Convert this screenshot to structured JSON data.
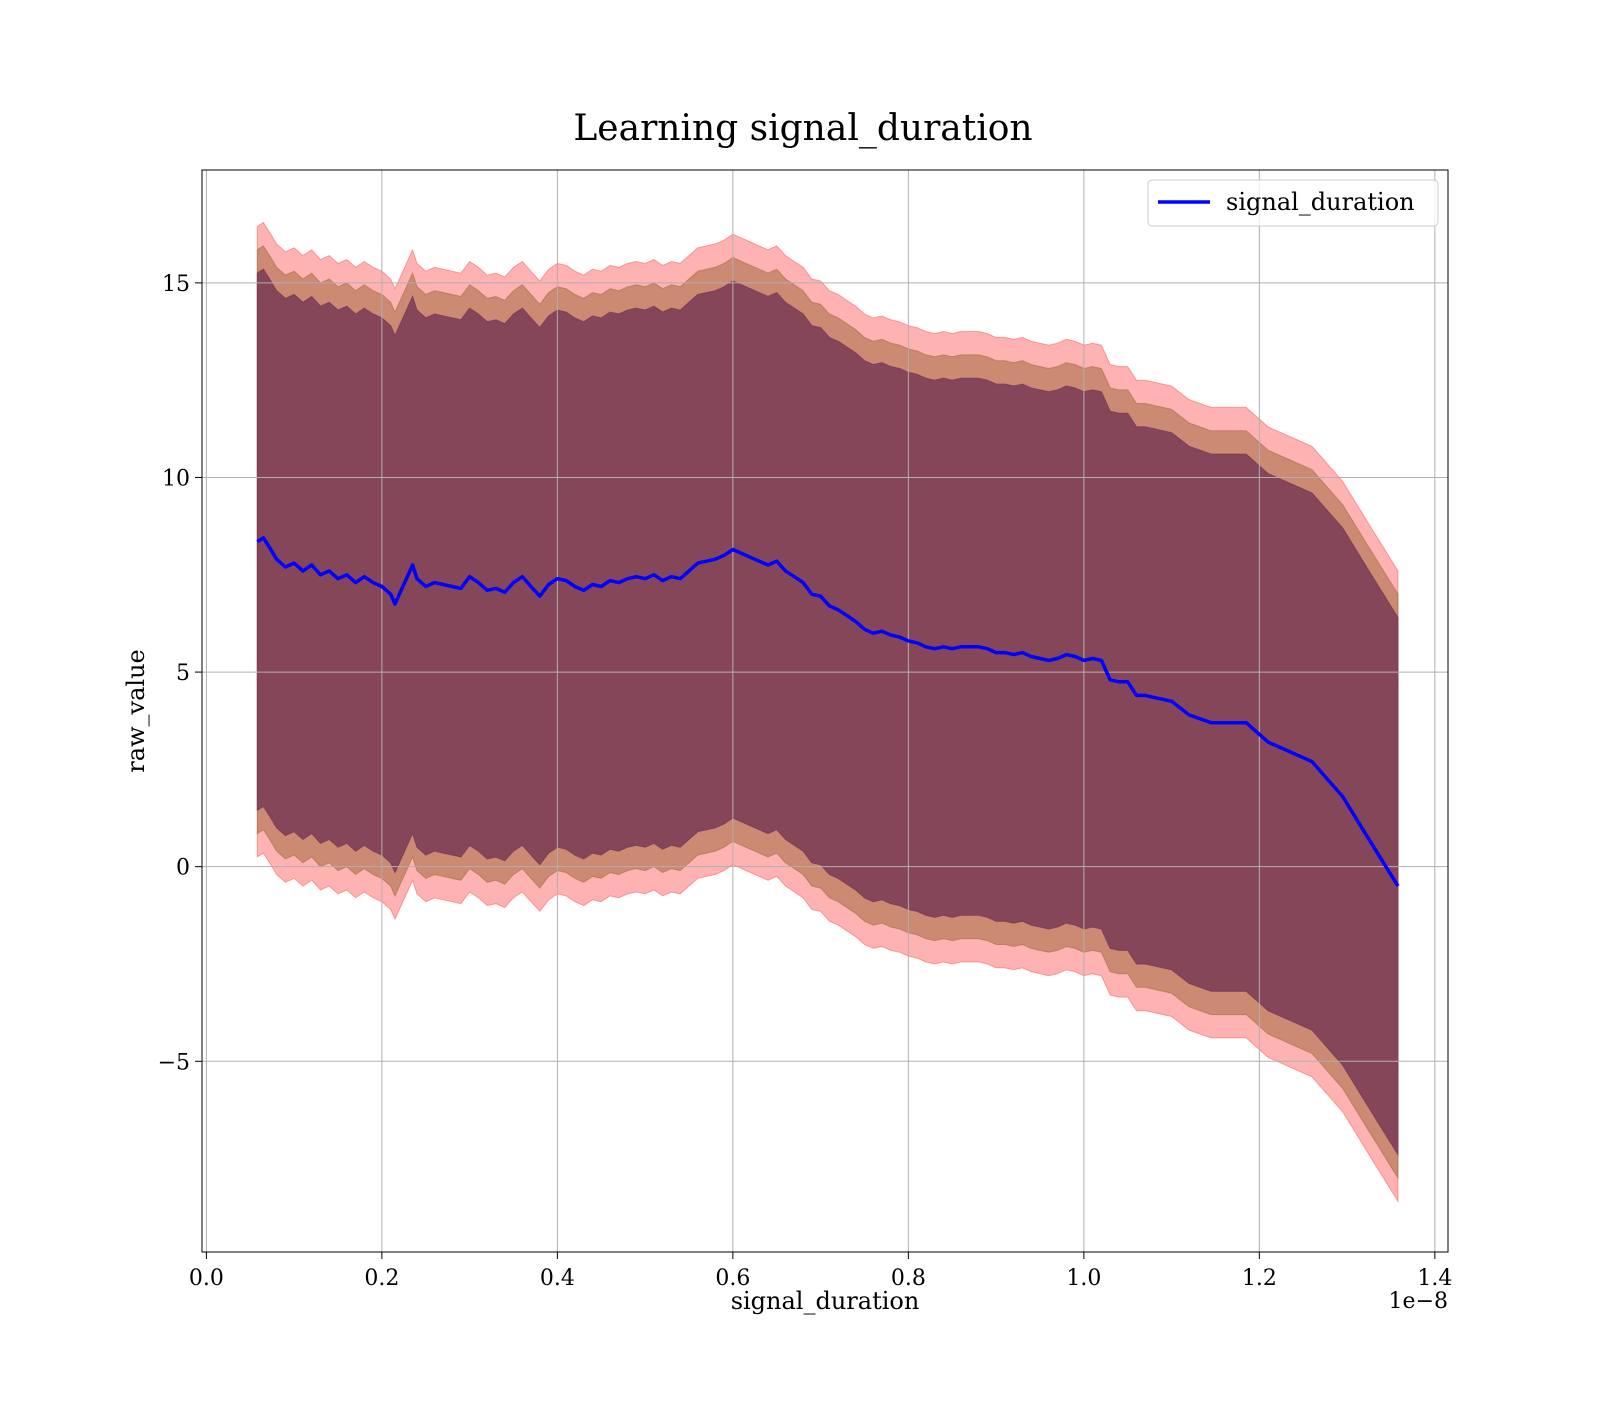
{
  "chart_data": {
    "type": "line",
    "title": "Learning signal_duration",
    "xlabel": "signal_duration",
    "ylabel": "raw_value",
    "x_offset_label": "1e−8",
    "xlim": [
      -0.005,
      1.415
    ],
    "ylim": [
      -9.9,
      17.9
    ],
    "x_ticks": [
      0.0,
      0.2,
      0.4,
      0.6,
      0.8,
      1.0,
      1.2,
      1.4
    ],
    "x_tick_labels": [
      "0.0",
      "0.2",
      "0.4",
      "0.6",
      "0.8",
      "1.0",
      "1.2",
      "1.4"
    ],
    "y_ticks": [
      -5,
      0,
      5,
      10,
      15
    ],
    "y_tick_labels": [
      "−5",
      "0",
      "5",
      "10",
      "15"
    ],
    "grid": true,
    "legend_position": "top-right",
    "colors": {
      "line": "#0000ff",
      "outer_band": "#ff0000",
      "middle_band": "#a06a3c",
      "inner_band": "#7a3a55"
    },
    "series": [
      {
        "name": "signal_duration",
        "x": [
          0.058,
          0.065,
          0.072,
          0.08,
          0.09,
          0.1,
          0.11,
          0.12,
          0.13,
          0.14,
          0.15,
          0.16,
          0.17,
          0.18,
          0.19,
          0.2,
          0.21,
          0.215,
          0.22,
          0.23,
          0.235,
          0.24,
          0.25,
          0.26,
          0.27,
          0.28,
          0.29,
          0.3,
          0.31,
          0.32,
          0.33,
          0.34,
          0.35,
          0.36,
          0.37,
          0.38,
          0.39,
          0.4,
          0.41,
          0.42,
          0.43,
          0.44,
          0.45,
          0.46,
          0.47,
          0.48,
          0.49,
          0.5,
          0.51,
          0.52,
          0.53,
          0.54,
          0.55,
          0.56,
          0.57,
          0.58,
          0.59,
          0.6,
          0.61,
          0.62,
          0.63,
          0.64,
          0.65,
          0.66,
          0.67,
          0.68,
          0.69,
          0.7,
          0.71,
          0.72,
          0.73,
          0.74,
          0.75,
          0.76,
          0.77,
          0.78,
          0.79,
          0.8,
          0.81,
          0.82,
          0.83,
          0.84,
          0.85,
          0.86,
          0.87,
          0.88,
          0.89,
          0.9,
          0.91,
          0.92,
          0.93,
          0.94,
          0.95,
          0.96,
          0.97,
          0.98,
          0.99,
          1.0,
          1.01,
          1.02,
          1.03,
          1.04,
          1.05,
          1.06,
          1.07,
          1.08,
          1.09,
          1.1,
          1.12,
          1.145,
          1.185,
          1.21,
          1.26,
          1.295,
          1.325,
          1.358
        ],
        "values": [
          8.35,
          8.45,
          8.2,
          7.9,
          7.7,
          7.8,
          7.6,
          7.75,
          7.5,
          7.6,
          7.4,
          7.5,
          7.3,
          7.45,
          7.3,
          7.2,
          7.0,
          6.75,
          7.0,
          7.5,
          7.75,
          7.4,
          7.2,
          7.3,
          7.25,
          7.2,
          7.15,
          7.45,
          7.3,
          7.1,
          7.15,
          7.05,
          7.3,
          7.45,
          7.2,
          6.95,
          7.25,
          7.4,
          7.35,
          7.2,
          7.1,
          7.25,
          7.2,
          7.35,
          7.3,
          7.4,
          7.45,
          7.4,
          7.5,
          7.35,
          7.45,
          7.4,
          7.6,
          7.8,
          7.85,
          7.9,
          8.0,
          8.15,
          8.05,
          7.95,
          7.85,
          7.75,
          7.85,
          7.6,
          7.45,
          7.3,
          7.0,
          6.95,
          6.7,
          6.6,
          6.45,
          6.3,
          6.1,
          6.0,
          6.05,
          5.95,
          5.9,
          5.8,
          5.75,
          5.65,
          5.6,
          5.65,
          5.6,
          5.65,
          5.65,
          5.65,
          5.6,
          5.5,
          5.5,
          5.45,
          5.5,
          5.4,
          5.35,
          5.3,
          5.35,
          5.45,
          5.4,
          5.3,
          5.35,
          5.3,
          4.8,
          4.75,
          4.75,
          4.4,
          4.4,
          4.35,
          4.3,
          4.25,
          3.9,
          3.7,
          3.7,
          3.2,
          2.7,
          1.8,
          0.7,
          -0.5
        ]
      }
    ],
    "bands": [
      {
        "x": [
          0.058,
          0.065,
          0.072,
          0.08,
          0.09,
          0.1,
          0.11,
          0.12,
          0.13,
          0.14,
          0.15,
          0.16,
          0.17,
          0.18,
          0.19,
          0.2,
          0.21,
          0.215,
          0.22,
          0.23,
          0.235,
          0.24,
          0.25,
          0.26,
          0.27,
          0.28,
          0.29,
          0.3,
          0.31,
          0.32,
          0.33,
          0.34,
          0.35,
          0.36,
          0.37,
          0.38,
          0.39,
          0.4,
          0.41,
          0.42,
          0.43,
          0.44,
          0.45,
          0.46,
          0.47,
          0.48,
          0.49,
          0.5,
          0.51,
          0.52,
          0.53,
          0.54,
          0.55,
          0.56,
          0.57,
          0.58,
          0.59,
          0.6,
          0.61,
          0.62,
          0.63,
          0.64,
          0.65,
          0.66,
          0.67,
          0.68,
          0.69,
          0.7,
          0.71,
          0.72,
          0.73,
          0.74,
          0.75,
          0.76,
          0.77,
          0.78,
          0.79,
          0.8,
          0.81,
          0.82,
          0.83,
          0.84,
          0.85,
          0.86,
          0.87,
          0.88,
          0.89,
          0.9,
          0.91,
          0.92,
          0.93,
          0.94,
          0.95,
          0.96,
          0.97,
          0.98,
          0.99,
          1.0,
          1.01,
          1.02,
          1.03,
          1.04,
          1.05,
          1.06,
          1.07,
          1.08,
          1.09,
          1.1,
          1.12,
          1.145,
          1.185,
          1.21,
          1.26,
          1.295,
          1.325,
          1.358
        ],
        "levels": [
          {
            "half_width": 8.1,
            "color_key": "outer_band",
            "opacity": 0.3
          },
          {
            "half_width": 7.5,
            "color_key": "middle_band",
            "opacity": 0.55
          },
          {
            "half_width": 6.9,
            "color_key": "inner_band",
            "opacity": 0.85
          }
        ]
      }
    ]
  }
}
